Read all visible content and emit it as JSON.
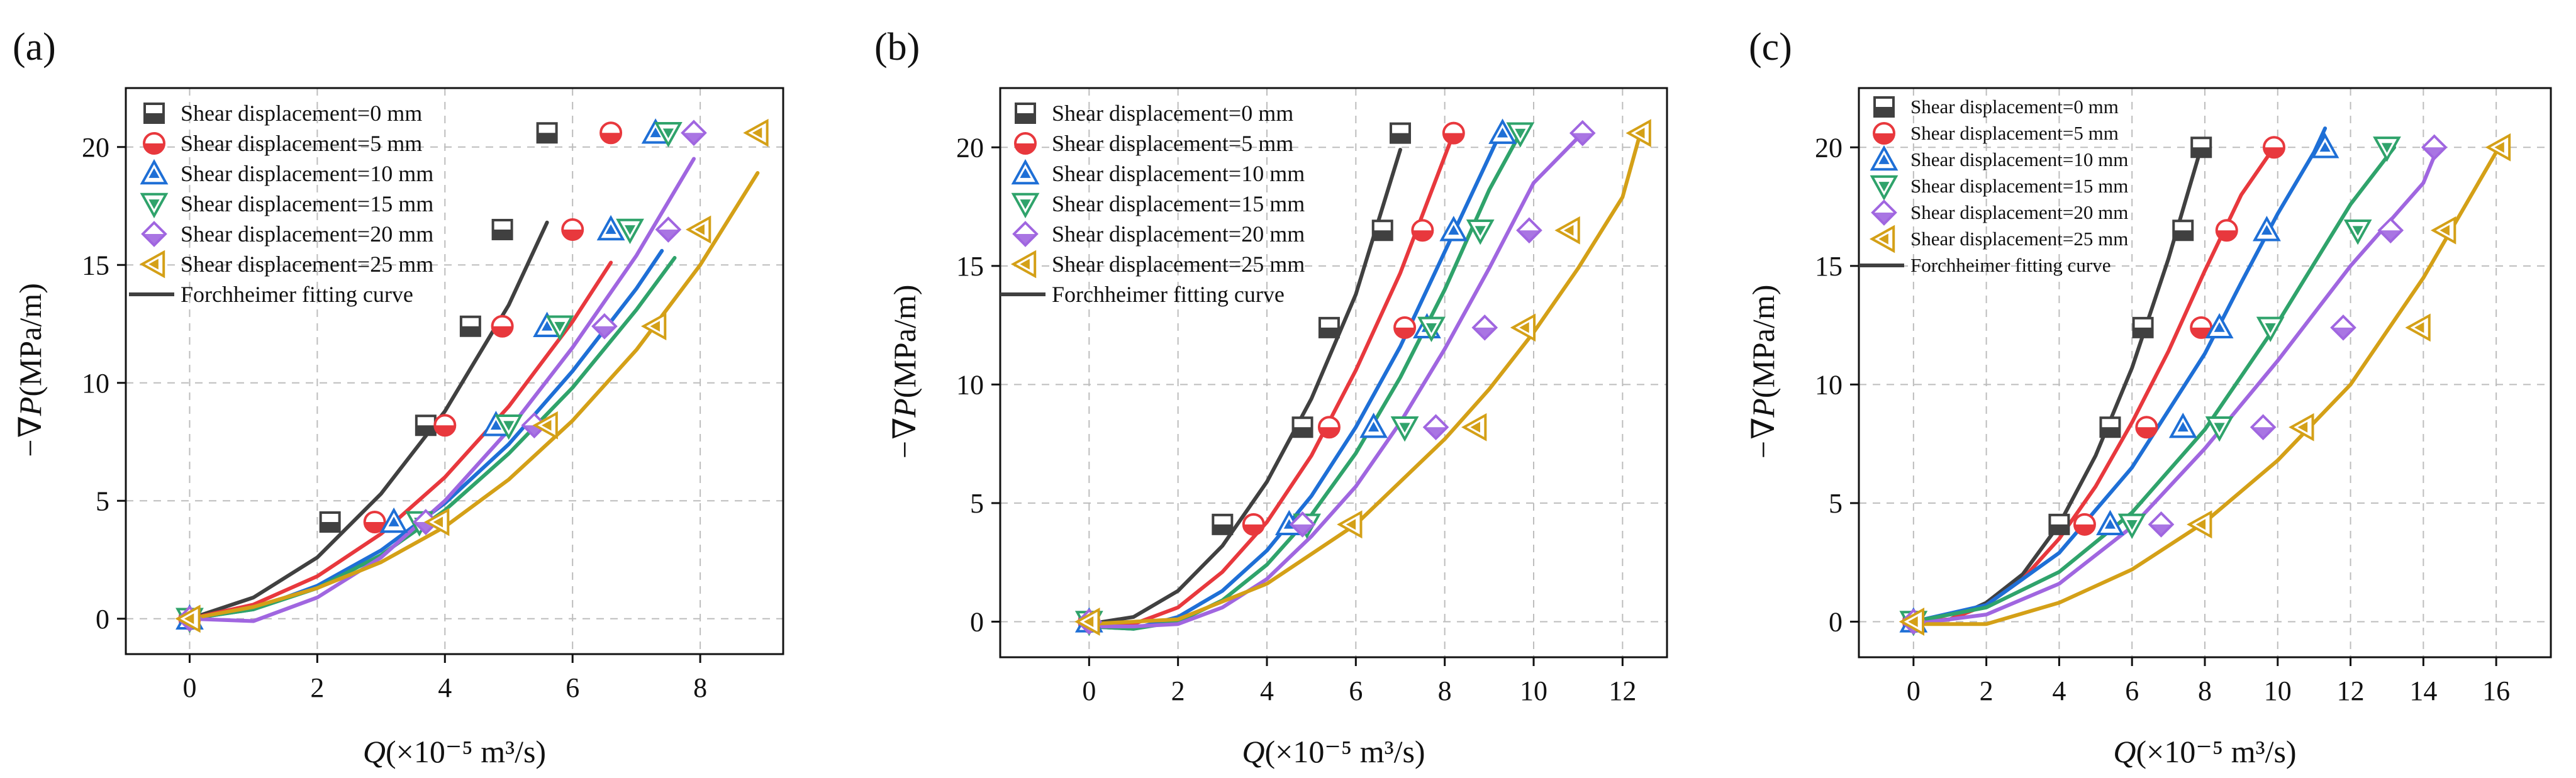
{
  "figure": {
    "panel_labels": [
      "(a)",
      "(b)",
      "(c)"
    ]
  },
  "chart_data": [
    {
      "type": "scatter",
      "panel": "(a)",
      "xlabel_sym": "Q",
      "xlabel_rest": "(×10⁻⁵ m³/s)",
      "ylabel_sym": "−∇P",
      "ylabel_rest": "(MPa/m)",
      "xlim": [
        -1,
        9.3
      ],
      "ylim": [
        -1.5,
        22.5
      ],
      "xticks": [
        0,
        2,
        4,
        6,
        8
      ],
      "yticks": [
        0,
        5,
        10,
        15,
        20
      ],
      "fit_label": "Forchheimer fitting curve",
      "series": [
        {
          "name": "Shear displacement=0 mm",
          "marker": "square",
          "color": "#404040",
          "x": [
            0,
            2.2,
            3.7,
            4.4,
            4.9,
            5.6
          ],
          "y": [
            0,
            4.1,
            8.2,
            12.4,
            16.5,
            20.6
          ],
          "fit_x": [
            0,
            1,
            2,
            3,
            4,
            5,
            5.6
          ],
          "fit_y": [
            0,
            0.9,
            2.6,
            5.3,
            8.8,
            13.3,
            16.8
          ]
        },
        {
          "name": "Shear displacement=5 mm",
          "marker": "circle",
          "color": "#e8383d",
          "x": [
            0,
            2.9,
            4.0,
            4.9,
            6.0,
            6.6
          ],
          "y": [
            0,
            4.1,
            8.2,
            12.4,
            16.5,
            20.6
          ],
          "fit_x": [
            0,
            1,
            2,
            3,
            4,
            5,
            6,
            6.6
          ],
          "fit_y": [
            0,
            0.6,
            1.8,
            3.6,
            6.0,
            9.0,
            12.6,
            15.1
          ]
        },
        {
          "name": "Shear displacement=10 mm",
          "marker": "triangle-up",
          "color": "#1e6fd6",
          "x": [
            0,
            3.2,
            4.8,
            5.6,
            6.6,
            7.3
          ],
          "y": [
            0,
            4.1,
            8.2,
            12.4,
            16.5,
            20.6
          ],
          "fit_x": [
            0,
            1,
            2,
            3,
            4,
            5,
            6,
            7,
            7.4
          ],
          "fit_y": [
            0,
            0.4,
            1.4,
            2.9,
            4.9,
            7.4,
            10.5,
            14.0,
            15.6
          ]
        },
        {
          "name": "Shear displacement=15 mm",
          "marker": "triangle-down",
          "color": "#2fa36b",
          "x": [
            0,
            3.6,
            5.0,
            5.8,
            6.9,
            7.5
          ],
          "y": [
            0,
            4.1,
            8.2,
            12.4,
            16.5,
            20.6
          ],
          "fit_x": [
            0,
            1,
            2,
            3,
            4,
            5,
            6,
            7,
            7.6
          ],
          "fit_y": [
            0,
            0.4,
            1.3,
            2.7,
            4.6,
            7.0,
            9.8,
            13.1,
            15.3
          ]
        },
        {
          "name": "Shear displacement=20 mm",
          "marker": "diamond",
          "color": "#a066e0",
          "x": [
            0,
            3.7,
            5.4,
            6.5,
            7.5,
            7.9
          ],
          "y": [
            0,
            4.1,
            8.2,
            12.4,
            16.5,
            20.6
          ],
          "fit_x": [
            0,
            1,
            2,
            3,
            4,
            5,
            6,
            7,
            7.9
          ],
          "fit_y": [
            0,
            -0.1,
            0.9,
            2.6,
            5.0,
            8.0,
            11.5,
            15.4,
            19.5
          ]
        },
        {
          "name": "Shear displacement=25 mm",
          "marker": "triangle-left",
          "color": "#d4a017",
          "x": [
            0,
            3.9,
            5.6,
            7.3,
            8.0,
            8.9
          ],
          "y": [
            0,
            4.1,
            8.2,
            12.4,
            16.5,
            20.6
          ],
          "fit_x": [
            0,
            1,
            2,
            3,
            4,
            5,
            6,
            7,
            8,
            8.9
          ],
          "fit_y": [
            0,
            0.5,
            1.3,
            2.4,
            3.9,
            5.9,
            8.4,
            11.4,
            15.0,
            18.9
          ]
        }
      ]
    },
    {
      "type": "scatter",
      "panel": "(b)",
      "xlabel_sym": "Q",
      "xlabel_rest": "(×10⁻⁵ m³/s)",
      "ylabel_sym": "−∇P",
      "ylabel_rest": "(MPa/m)",
      "xlim": [
        -2,
        13
      ],
      "ylim": [
        -1.5,
        22.5
      ],
      "xticks": [
        0,
        2,
        4,
        6,
        8,
        10,
        12
      ],
      "yticks": [
        0,
        5,
        10,
        15,
        20
      ],
      "fit_label": "Forchheimer fitting curve",
      "series": [
        {
          "name": "Shear displacement=0 mm",
          "marker": "square",
          "color": "#404040",
          "x": [
            0,
            3.0,
            4.8,
            5.4,
            6.6,
            7.0
          ],
          "y": [
            0,
            4.1,
            8.2,
            12.4,
            16.5,
            20.6
          ],
          "fit_x": [
            0,
            1,
            2,
            3,
            4,
            5,
            6,
            7
          ],
          "fit_y": [
            -0.1,
            0.2,
            1.3,
            3.2,
            5.9,
            9.4,
            13.8,
            19.9
          ]
        },
        {
          "name": "Shear displacement=5 mm",
          "marker": "circle",
          "color": "#e8383d",
          "x": [
            0,
            3.7,
            5.4,
            7.1,
            7.5,
            8.2
          ],
          "y": [
            0,
            4.1,
            8.2,
            12.4,
            16.5,
            20.6
          ],
          "fit_x": [
            0,
            1,
            2,
            3,
            4,
            5,
            6,
            7,
            8.2
          ],
          "fit_y": [
            -0.1,
            -0.1,
            0.6,
            2.1,
            4.2,
            7.0,
            10.6,
            14.7,
            20.6
          ]
        },
        {
          "name": "Shear displacement=10 mm",
          "marker": "triangle-up",
          "color": "#1e6fd6",
          "x": [
            0,
            4.5,
            6.4,
            7.6,
            8.2,
            9.3
          ],
          "y": [
            0,
            4.1,
            8.2,
            12.4,
            16.5,
            20.6
          ],
          "fit_x": [
            0,
            1,
            2,
            3,
            4,
            5,
            6,
            7,
            8,
            9.3
          ],
          "fit_y": [
            -0.2,
            -0.3,
            0.2,
            1.3,
            3.0,
            5.3,
            8.2,
            11.6,
            15.6,
            20.8
          ]
        },
        {
          "name": "Shear displacement=15 mm",
          "marker": "triangle-down",
          "color": "#2fa36b",
          "x": [
            0,
            4.9,
            7.1,
            7.7,
            8.8,
            9.7
          ],
          "y": [
            0,
            4.1,
            8.2,
            12.4,
            16.5,
            20.6
          ],
          "fit_x": [
            0,
            1,
            2,
            3,
            4,
            5,
            6,
            7,
            8,
            9,
            9.7
          ],
          "fit_y": [
            -0.2,
            -0.3,
            0.0,
            0.9,
            2.4,
            4.5,
            7.1,
            10.3,
            14.0,
            18.2,
            20.6
          ]
        },
        {
          "name": "Shear displacement=20 mm",
          "marker": "diamond",
          "color": "#a066e0",
          "x": [
            0,
            4.8,
            7.8,
            8.9,
            9.9,
            11.1
          ],
          "y": [
            0,
            4.1,
            8.2,
            12.4,
            16.5,
            20.6
          ],
          "fit_x": [
            0,
            1,
            2,
            3,
            4,
            5,
            6,
            7,
            8,
            9,
            10,
            11.1
          ],
          "fit_y": [
            -0.2,
            -0.2,
            -0.1,
            0.6,
            1.8,
            3.6,
            5.7,
            8.4,
            11.5,
            14.9,
            18.5,
            20.6
          ]
        },
        {
          "name": "Shear displacement=25 mm",
          "marker": "triangle-left",
          "color": "#d4a017",
          "x": [
            0,
            5.9,
            8.7,
            9.8,
            10.8,
            12.4
          ],
          "y": [
            0,
            4.1,
            8.2,
            12.4,
            16.5,
            20.6
          ],
          "fit_x": [
            0,
            2,
            4,
            6,
            8,
            9,
            10,
            11,
            12,
            12.4
          ],
          "fit_y": [
            -0.1,
            0.1,
            1.6,
            4.1,
            7.7,
            9.8,
            12.2,
            14.9,
            17.9,
            20.6
          ]
        }
      ]
    },
    {
      "type": "scatter",
      "panel": "(c)",
      "xlabel_sym": "Q",
      "xlabel_rest": "(×10⁻⁵ m³/s)",
      "ylabel_sym": "−∇P",
      "ylabel_rest": "(MPa/m)",
      "xlim": [
        -1.5,
        17.5
      ],
      "ylim": [
        -1.5,
        22.5
      ],
      "xticks": [
        0,
        2,
        4,
        6,
        8,
        10,
        12,
        14,
        16
      ],
      "yticks": [
        0,
        5,
        10,
        15,
        20
      ],
      "fit_label": "Forchheimer fitting curve",
      "series": [
        {
          "name": "Shear displacement=0 mm",
          "marker": "square",
          "color": "#404040",
          "x": [
            0,
            4.0,
            5.4,
            6.3,
            7.4,
            7.9
          ],
          "y": [
            0,
            4.1,
            8.2,
            12.4,
            16.5,
            20.0
          ],
          "fit_x": [
            0,
            1,
            2,
            3,
            4,
            5,
            6,
            7,
            7.9
          ],
          "fit_y": [
            0,
            0.1,
            0.8,
            2.0,
            4.1,
            7.0,
            10.7,
            15.3,
            20.0
          ]
        },
        {
          "name": "Shear displacement=5 mm",
          "marker": "circle",
          "color": "#e8383d",
          "x": [
            0,
            4.7,
            6.4,
            7.9,
            8.6,
            9.9
          ],
          "y": [
            0,
            4.1,
            8.2,
            12.4,
            16.5,
            20.0
          ],
          "fit_x": [
            0,
            1,
            2,
            3,
            4,
            5,
            6,
            7,
            8,
            9,
            9.9
          ],
          "fit_y": [
            0,
            0.1,
            0.7,
            1.8,
            3.5,
            5.7,
            8.4,
            11.4,
            14.8,
            18.0,
            20.0
          ]
        },
        {
          "name": "Shear displacement=10 mm",
          "marker": "triangle-up",
          "color": "#1e6fd6",
          "x": [
            0,
            5.4,
            7.4,
            8.4,
            9.7,
            11.3
          ],
          "y": [
            0,
            4.1,
            8.2,
            12.4,
            16.5,
            20.0
          ],
          "fit_x": [
            0,
            2,
            4,
            6,
            8,
            9,
            10,
            11,
            11.3
          ],
          "fit_y": [
            0,
            0.7,
            2.9,
            6.5,
            11.3,
            14.3,
            17.2,
            19.8,
            20.8
          ]
        },
        {
          "name": "Shear displacement=15 mm",
          "marker": "triangle-down",
          "color": "#2fa36b",
          "x": [
            0,
            6.0,
            8.4,
            9.8,
            12.2,
            13.0
          ],
          "y": [
            0,
            4.1,
            8.2,
            12.4,
            16.5,
            20.0
          ],
          "fit_x": [
            0,
            2,
            4,
            6,
            8,
            10,
            12,
            13.2
          ],
          "fit_y": [
            0,
            0.6,
            2.1,
            4.6,
            8.1,
            12.6,
            17.6,
            20.0
          ]
        },
        {
          "name": "Shear displacement=20 mm",
          "marker": "diamond",
          "color": "#a066e0",
          "x": [
            0,
            6.8,
            9.6,
            11.8,
            13.1,
            14.3
          ],
          "y": [
            0,
            4.1,
            8.2,
            12.4,
            16.5,
            20.0
          ],
          "fit_x": [
            0,
            2,
            4,
            6,
            8,
            10,
            12,
            14,
            14.4
          ],
          "fit_y": [
            -0.1,
            0.3,
            1.6,
            4.0,
            7.3,
            11.0,
            15.0,
            18.5,
            20.0
          ]
        },
        {
          "name": "Shear displacement=25 mm",
          "marker": "triangle-left",
          "color": "#d4a017",
          "x": [
            0,
            7.9,
            10.7,
            13.9,
            14.6,
            16.1
          ],
          "y": [
            0,
            4.1,
            8.2,
            12.4,
            16.5,
            20.0
          ],
          "fit_x": [
            0,
            2,
            4,
            6,
            8,
            10,
            12,
            14,
            16
          ],
          "fit_y": [
            -0.1,
            -0.1,
            0.8,
            2.2,
            4.2,
            6.8,
            10.0,
            14.5,
            19.8
          ]
        }
      ]
    }
  ]
}
